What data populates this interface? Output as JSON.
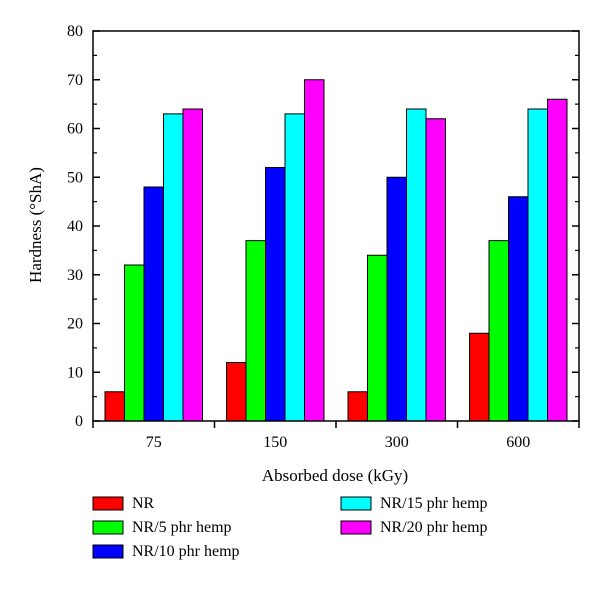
{
  "chart_data": {
    "type": "bar",
    "title": "",
    "xlabel": "Absorbed dose (kGy)",
    "ylabel": "Hardness (°ShA)",
    "categories": [
      "75",
      "150",
      "300",
      "600"
    ],
    "ylim": [
      0,
      80
    ],
    "yticks": [
      0,
      10,
      20,
      30,
      40,
      50,
      60,
      70,
      80
    ],
    "grid": false,
    "legend_position": "bottom",
    "series": [
      {
        "name": "NR",
        "color": "#ff0000",
        "values": [
          6,
          12,
          6,
          18
        ]
      },
      {
        "name": "NR/5 phr hemp",
        "color": "#00ff00",
        "values": [
          32,
          37,
          34,
          37
        ]
      },
      {
        "name": "NR/10 phr hemp",
        "color": "#0000ff",
        "values": [
          48,
          52,
          50,
          46
        ]
      },
      {
        "name": "NR/15 phr hemp",
        "color": "#00ffff",
        "values": [
          63,
          63,
          64,
          64
        ]
      },
      {
        "name": "NR/20 phr hemp",
        "color": "#ff00ff",
        "values": [
          64,
          70,
          62,
          66
        ]
      }
    ]
  }
}
